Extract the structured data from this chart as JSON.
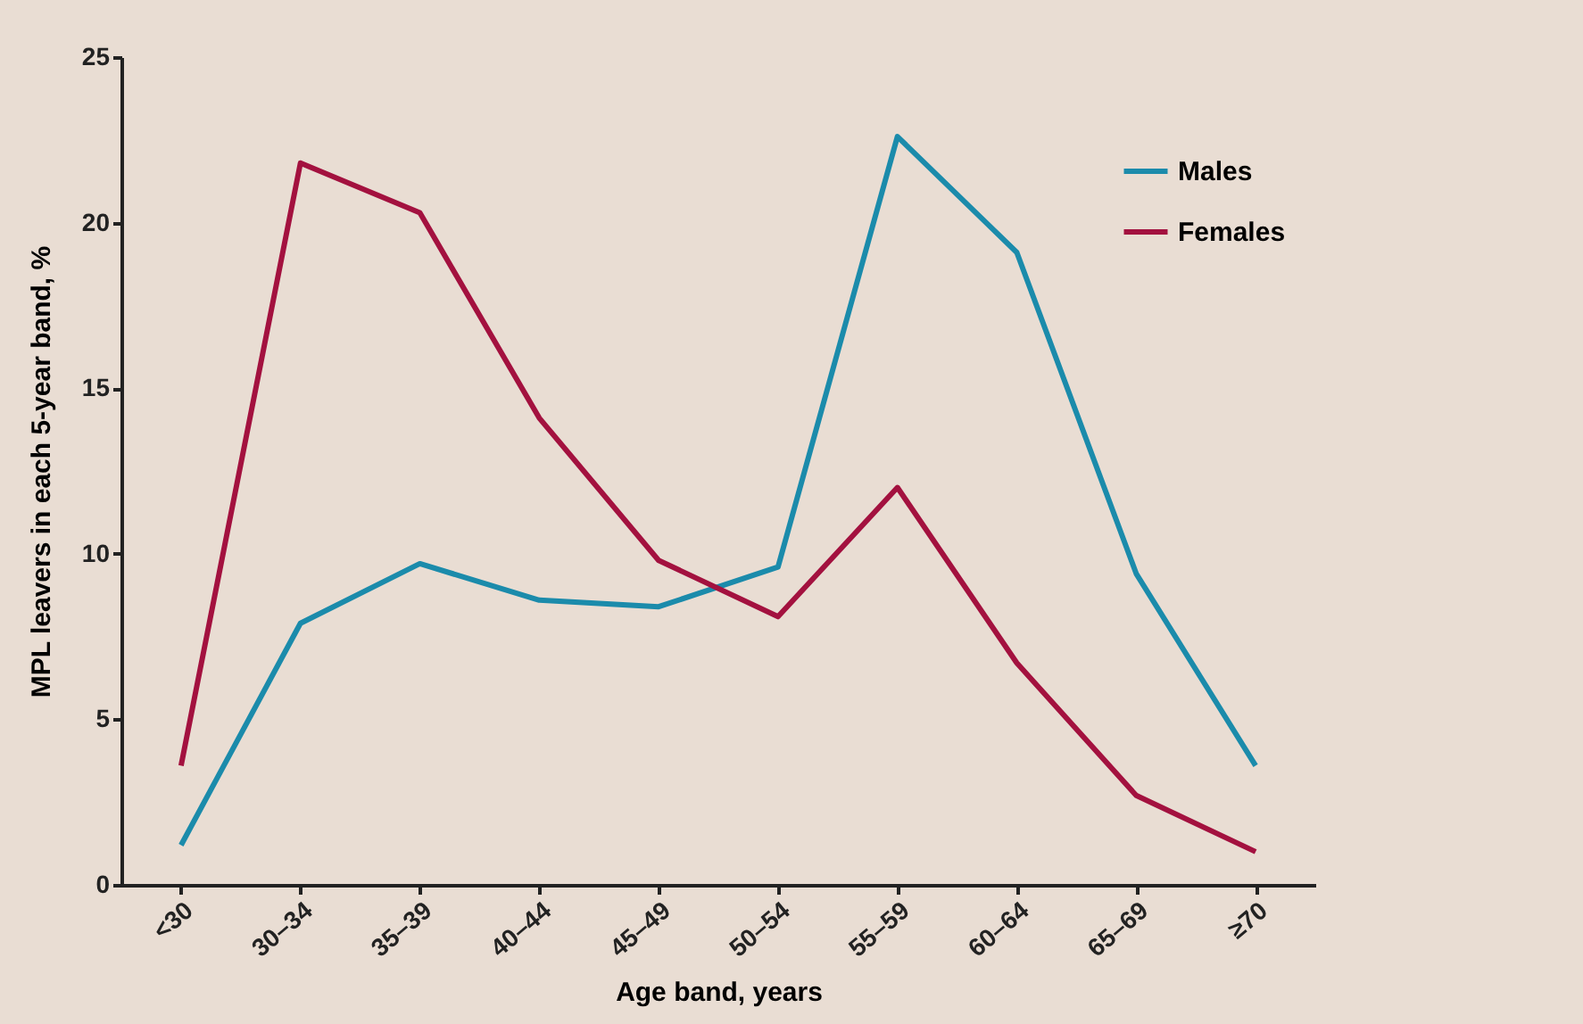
{
  "chart_data": {
    "type": "line",
    "xlabel": "Age band, years",
    "ylabel": "MPL leavers in each 5-year band, %",
    "categories": [
      "<30",
      "30–34",
      "35–39",
      "40–44",
      "45–49",
      "50–54",
      "55–59",
      "60–64",
      "65–69",
      "≥70"
    ],
    "series": [
      {
        "name": "Males",
        "color": "#1b8bab",
        "values": [
          1.2,
          7.9,
          9.7,
          8.6,
          8.4,
          9.6,
          22.6,
          19.1,
          9.4,
          3.6
        ]
      },
      {
        "name": "Females",
        "color": "#a3113f",
        "values": [
          3.6,
          21.8,
          20.3,
          14.1,
          9.8,
          8.1,
          12.0,
          6.7,
          2.7,
          1.0
        ]
      }
    ],
    "ylim": [
      0,
      25
    ],
    "yticks": [
      0,
      5,
      10,
      15,
      20,
      25
    ],
    "grid": false,
    "legend": "top right",
    "marker": "none",
    "line_style": "solid"
  }
}
